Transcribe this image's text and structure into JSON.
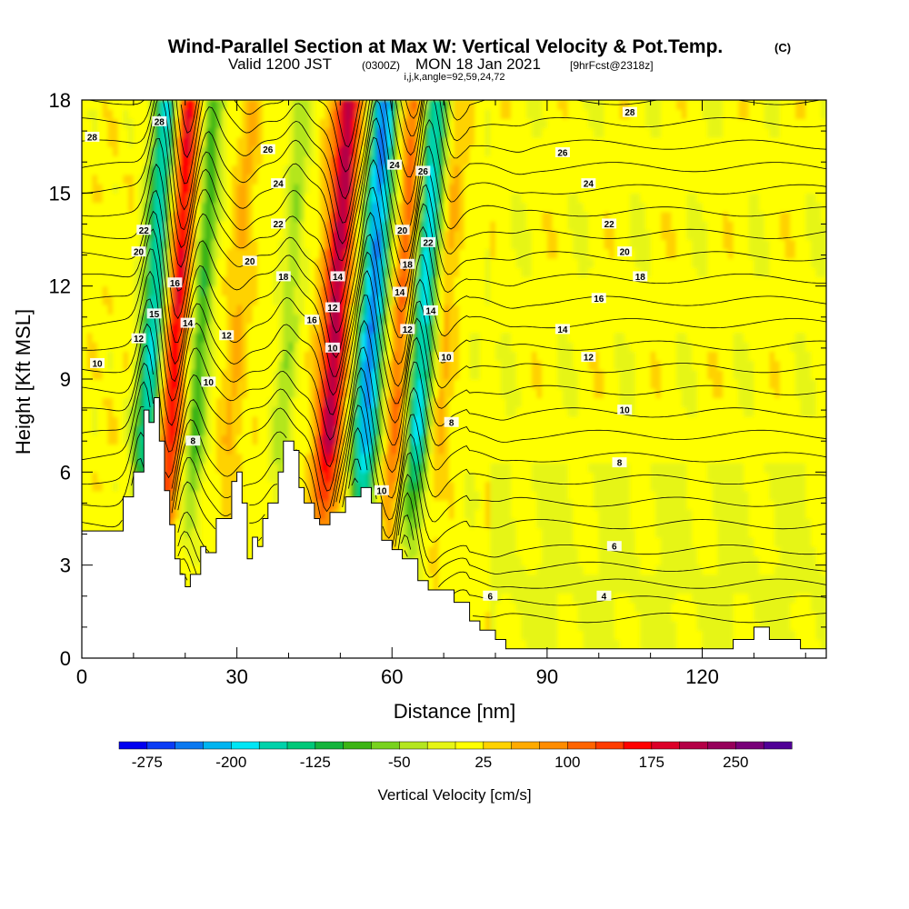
{
  "header": {
    "title_main": "Wind-Parallel Section at Max W: Vertical Velocity & Pot.Temp.",
    "title_mark": "(C)",
    "valid_a": "Valid 1200 JST",
    "valid_b": "(0300Z)",
    "valid_c": "MON 18 Jan 2021",
    "valid_d": "[9hrFcst@2318z]",
    "indices": "i,j,k,angle=92,59,24,72"
  },
  "chart_data": {
    "type": "heatmap",
    "xlabel": "Distance [nm]",
    "ylabel": "Height [Kft MSL]",
    "xlim": [
      0,
      144
    ],
    "ylim": [
      0,
      18
    ],
    "xticks": [
      0,
      30,
      60,
      90,
      120
    ],
    "yticks": [
      0,
      3,
      6,
      9,
      12,
      15,
      18
    ],
    "colorbar": {
      "label": "Vertical Velocity [cm/s]",
      "range": [
        -300,
        300
      ],
      "tick_values": [
        -275,
        -200,
        -125,
        -50,
        25,
        100,
        175,
        250
      ],
      "tick_labels": [
        "-275",
        "-200",
        "-125",
        "-50",
        "25",
        "100",
        "175",
        "250"
      ],
      "colors": [
        "#0000f0",
        "#0a3cf5",
        "#0a78f0",
        "#00b4f0",
        "#00e6f5",
        "#00d2aa",
        "#00c878",
        "#14b43c",
        "#3cb414",
        "#78d21e",
        "#b4e61e",
        "#e6f514",
        "#ffff00",
        "#ffd200",
        "#ffaa00",
        "#ff8c00",
        "#ff6400",
        "#ff3c00",
        "#ff0000",
        "#dc0028",
        "#b40046",
        "#96005a",
        "#780078",
        "#500096"
      ]
    },
    "updraft_cores": [
      {
        "x": 17,
        "w": 175
      },
      {
        "x": 29,
        "w": 40
      },
      {
        "x": 48,
        "w": 200
      },
      {
        "x": 61,
        "w": 110
      },
      {
        "x": 69,
        "w": 50
      },
      {
        "x": 82,
        "w": 30
      }
    ],
    "downdraft_cores": [
      {
        "x": 13,
        "w": -200
      },
      {
        "x": 22,
        "w": -110
      },
      {
        "x": 39,
        "w": -60
      },
      {
        "x": 55,
        "w": -250
      },
      {
        "x": 65,
        "w": -200
      },
      {
        "x": 76,
        "w": -20
      }
    ],
    "terrain": [
      [
        0,
        4.1
      ],
      [
        8,
        4.1
      ],
      [
        8,
        5.2
      ],
      [
        10,
        5.2
      ],
      [
        10,
        6.0
      ],
      [
        12,
        6.0
      ],
      [
        12,
        8.0
      ],
      [
        13,
        8.0
      ],
      [
        13,
        7.6
      ],
      [
        14,
        7.6
      ],
      [
        14,
        8.4
      ],
      [
        15,
        8.4
      ],
      [
        15,
        7.0
      ],
      [
        16,
        7.0
      ],
      [
        16,
        5.4
      ],
      [
        17,
        5.4
      ],
      [
        17,
        5.0
      ],
      [
        17,
        4.3
      ],
      [
        18,
        4.3
      ],
      [
        18,
        3.2
      ],
      [
        19,
        3.2
      ],
      [
        19,
        2.7
      ],
      [
        20,
        2.7
      ],
      [
        20,
        2.3
      ],
      [
        21,
        2.3
      ],
      [
        21,
        2.7
      ],
      [
        23,
        2.7
      ],
      [
        23,
        3.6
      ],
      [
        24,
        3.6
      ],
      [
        24,
        3.4
      ],
      [
        26,
        3.4
      ],
      [
        26,
        4.5
      ],
      [
        29,
        4.5
      ],
      [
        29,
        5.7
      ],
      [
        30,
        5.7
      ],
      [
        30,
        6.0
      ],
      [
        31,
        6.0
      ],
      [
        31,
        5.0
      ],
      [
        32,
        5.0
      ],
      [
        32,
        3.2
      ],
      [
        33,
        3.2
      ],
      [
        33,
        3.9
      ],
      [
        34,
        3.9
      ],
      [
        34,
        3.6
      ],
      [
        35,
        3.6
      ],
      [
        35,
        4.5
      ],
      [
        36,
        4.5
      ],
      [
        36,
        5.0
      ],
      [
        38,
        5.0
      ],
      [
        38,
        6.0
      ],
      [
        39,
        6.0
      ],
      [
        39,
        7.0
      ],
      [
        41,
        7.0
      ],
      [
        41,
        6.7
      ],
      [
        42,
        6.7
      ],
      [
        42,
        5.5
      ],
      [
        43,
        5.5
      ],
      [
        43,
        5.0
      ],
      [
        45,
        5.0
      ],
      [
        45,
        4.5
      ],
      [
        46,
        4.5
      ],
      [
        46,
        4.3
      ],
      [
        48,
        4.3
      ],
      [
        48,
        4.7
      ],
      [
        51,
        4.7
      ],
      [
        51,
        5.2
      ],
      [
        54,
        5.2
      ],
      [
        54,
        5.5
      ],
      [
        56,
        5.5
      ],
      [
        56,
        5.0
      ],
      [
        58,
        5.0
      ],
      [
        58,
        3.8
      ],
      [
        60,
        3.8
      ],
      [
        60,
        3.5
      ],
      [
        62,
        3.5
      ],
      [
        62,
        3.2
      ],
      [
        65,
        3.2
      ],
      [
        65,
        2.5
      ],
      [
        67,
        2.5
      ],
      [
        67,
        2.2
      ],
      [
        72,
        2.2
      ],
      [
        72,
        1.8
      ],
      [
        75,
        1.8
      ],
      [
        75,
        1.2
      ],
      [
        77,
        1.2
      ],
      [
        77,
        0.9
      ],
      [
        80,
        0.9
      ],
      [
        80,
        0.6
      ],
      [
        82,
        0.6
      ],
      [
        82,
        0.3
      ],
      [
        126,
        0.3
      ],
      [
        126,
        0.6
      ],
      [
        130,
        0.6
      ],
      [
        130,
        1.0
      ],
      [
        133,
        1.0
      ],
      [
        133,
        0.6
      ],
      [
        139,
        0.6
      ],
      [
        139,
        0.3
      ],
      [
        144,
        0.3
      ]
    ],
    "contour_labels": [
      {
        "text": "28",
        "x": 2,
        "y": 16.8
      },
      {
        "text": "28",
        "x": 15,
        "y": 17.3
      },
      {
        "text": "22",
        "x": 12,
        "y": 13.8
      },
      {
        "text": "20",
        "x": 11,
        "y": 13.1
      },
      {
        "text": "16",
        "x": 18,
        "y": 12.1
      },
      {
        "text": "15",
        "x": 14,
        "y": 11.1
      },
      {
        "text": "14",
        "x": 20.5,
        "y": 10.8
      },
      {
        "text": "12",
        "x": 11,
        "y": 10.3
      },
      {
        "text": "10",
        "x": 3,
        "y": 9.5
      },
      {
        "text": "10",
        "x": 24.5,
        "y": 8.9
      },
      {
        "text": "8",
        "x": 21.5,
        "y": 7.0
      },
      {
        "text": "12",
        "x": 28,
        "y": 10.4
      },
      {
        "text": "20",
        "x": 32.5,
        "y": 12.8
      },
      {
        "text": "18",
        "x": 39,
        "y": 12.3
      },
      {
        "text": "26",
        "x": 36,
        "y": 16.4
      },
      {
        "text": "24",
        "x": 38,
        "y": 15.3
      },
      {
        "text": "22",
        "x": 38,
        "y": 14.0
      },
      {
        "text": "16",
        "x": 44.5,
        "y": 10.9
      },
      {
        "text": "14",
        "x": 49.5,
        "y": 12.3
      },
      {
        "text": "12",
        "x": 48.5,
        "y": 11.3
      },
      {
        "text": "10",
        "x": 48.5,
        "y": 10.0
      },
      {
        "text": "24",
        "x": 60.5,
        "y": 15.9
      },
      {
        "text": "26",
        "x": 66,
        "y": 15.7
      },
      {
        "text": "20",
        "x": 62,
        "y": 13.8
      },
      {
        "text": "18",
        "x": 63,
        "y": 12.7
      },
      {
        "text": "22",
        "x": 67,
        "y": 13.4
      },
      {
        "text": "14",
        "x": 61.5,
        "y": 11.8
      },
      {
        "text": "14",
        "x": 67.5,
        "y": 11.2
      },
      {
        "text": "12",
        "x": 63,
        "y": 10.6
      },
      {
        "text": "10",
        "x": 70.5,
        "y": 9.7
      },
      {
        "text": "8",
        "x": 71.5,
        "y": 7.6
      },
      {
        "text": "10",
        "x": 58,
        "y": 5.4
      },
      {
        "text": "28",
        "x": 106,
        "y": 17.6
      },
      {
        "text": "26",
        "x": 93,
        "y": 16.3
      },
      {
        "text": "24",
        "x": 98,
        "y": 15.3
      },
      {
        "text": "22",
        "x": 102,
        "y": 14.0
      },
      {
        "text": "20",
        "x": 105,
        "y": 13.1
      },
      {
        "text": "18",
        "x": 108,
        "y": 12.3
      },
      {
        "text": "16",
        "x": 100,
        "y": 11.6
      },
      {
        "text": "14",
        "x": 93,
        "y": 10.6
      },
      {
        "text": "12",
        "x": 98,
        "y": 9.7
      },
      {
        "text": "10",
        "x": 105,
        "y": 8.0
      },
      {
        "text": "8",
        "x": 104,
        "y": 6.3
      },
      {
        "text": "6",
        "x": 103,
        "y": 3.6
      },
      {
        "text": "6",
        "x": 79,
        "y": 2.0
      },
      {
        "text": "4",
        "x": 101,
        "y": 2.0
      }
    ]
  }
}
